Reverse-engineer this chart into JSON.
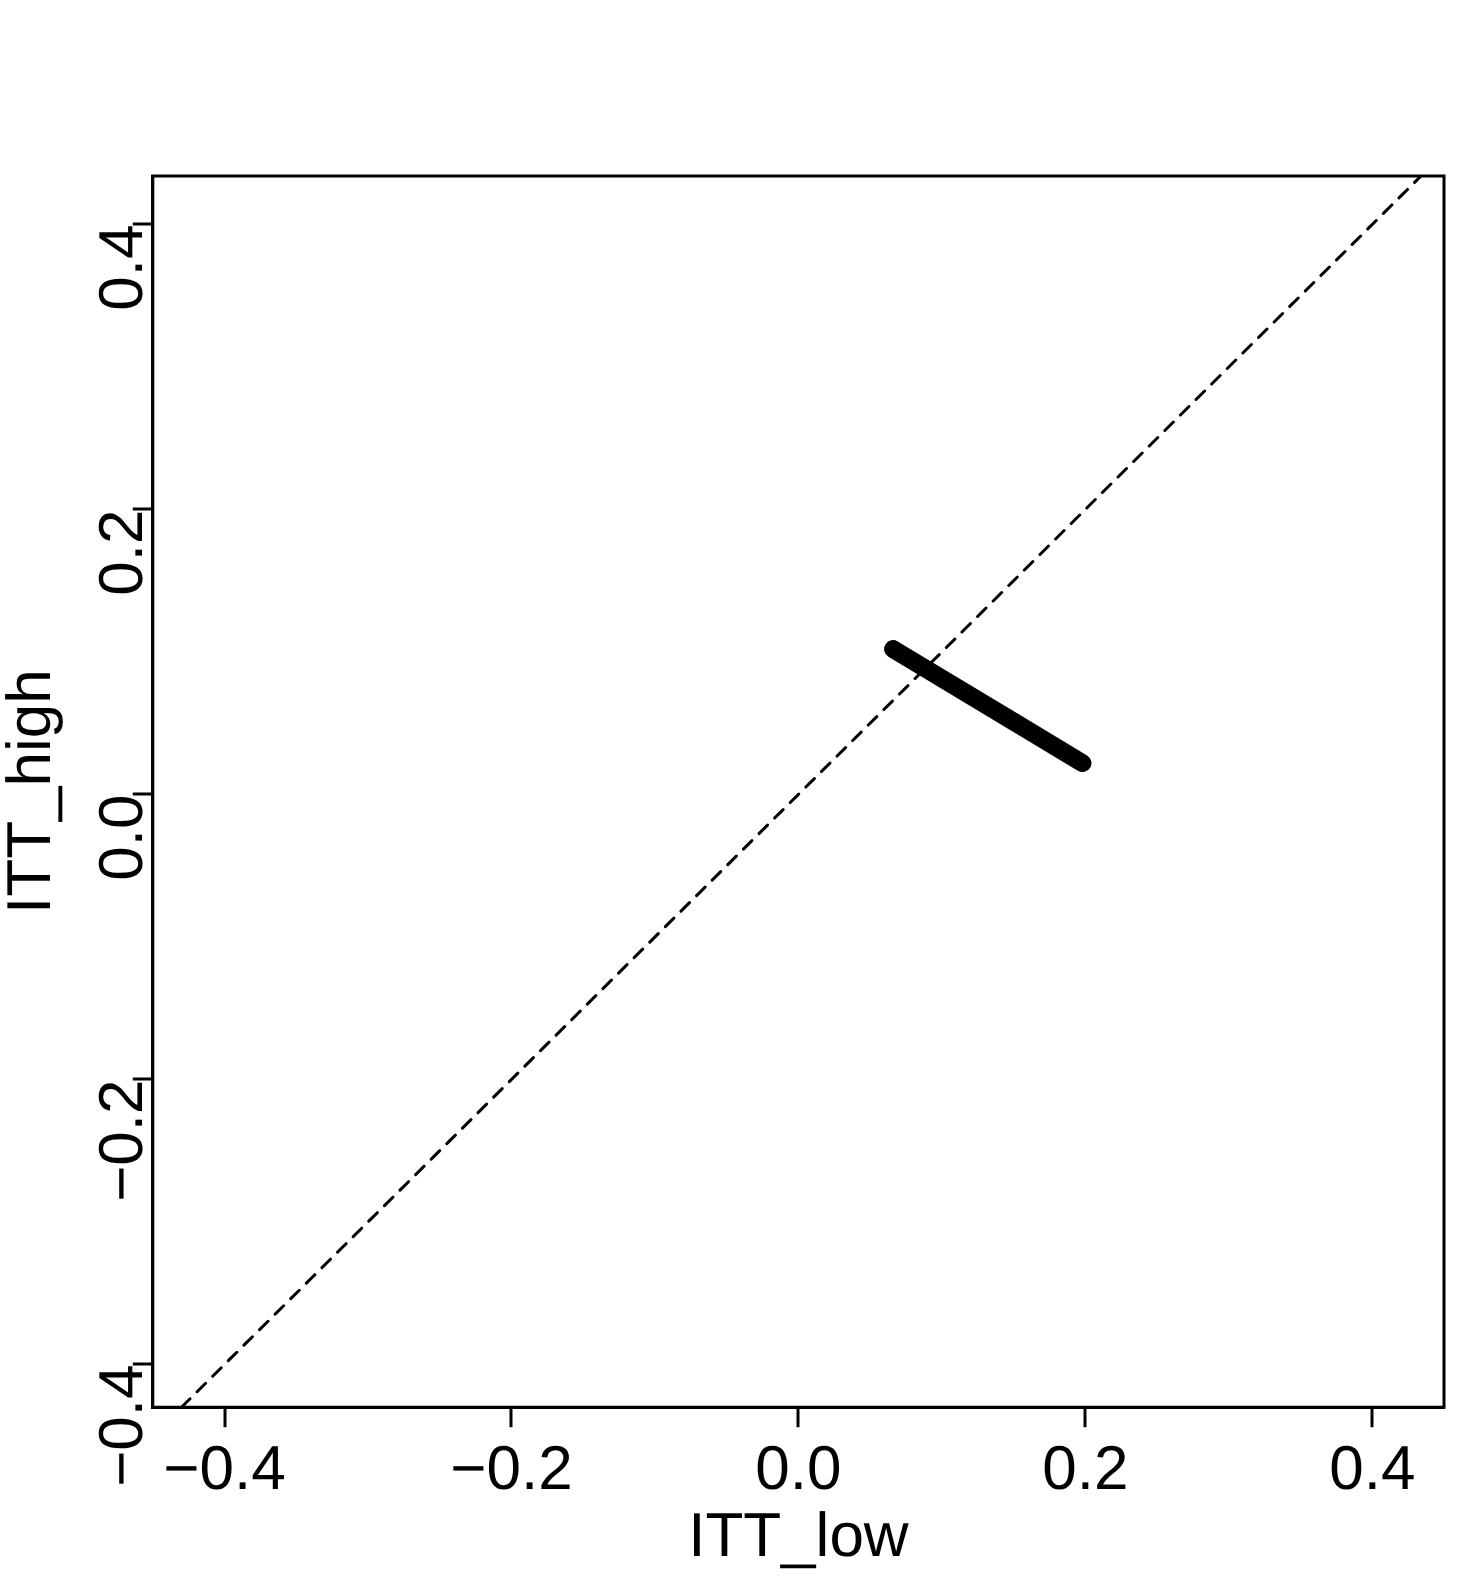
{
  "chart_data": {
    "type": "line",
    "xlabel": "ITT_low",
    "ylabel": "ITT_high",
    "xlim": [
      -0.45,
      0.45
    ],
    "ylim": [
      -0.43,
      0.434
    ],
    "xticks": [
      -0.4,
      -0.2,
      {
        "value": 0,
        "label": "0.0"
      },
      0.2,
      0.4
    ],
    "yticks": [
      -0.4,
      -0.2,
      {
        "value": 0,
        "label": "0.0"
      },
      0.2,
      0.4
    ],
    "series": [
      {
        "x": [
          0.066,
          0.198
        ],
        "values": [
          0.102,
          0.022
        ],
        "color": "#000000",
        "line_style": "solid"
      },
      {
        "x": [
          -0.43,
          0.434
        ],
        "values": [
          -0.43,
          0.434
        ],
        "color": "#000000",
        "line_style": "dashed"
      }
    ],
    "grid": false,
    "legend": false,
    "marker": "none"
  }
}
